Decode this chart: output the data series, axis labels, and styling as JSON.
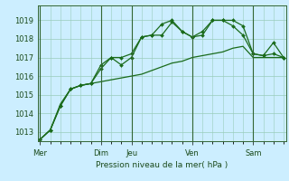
{
  "bg_color": "#cceeff",
  "grid_color_h": "#aaddcc",
  "grid_color_v_minor": "#bbddcc",
  "line_color": "#1a6b1a",
  "xlabel": "Pression niveau de la mer( hPa )",
  "ylim": [
    1012.5,
    1019.8
  ],
  "yticks": [
    1013,
    1014,
    1015,
    1016,
    1017,
    1018,
    1019
  ],
  "xticklabels": [
    "Mer",
    "Dim",
    "Jeu",
    "Ven",
    "Sam"
  ],
  "xtick_positions": [
    0,
    12,
    18,
    30,
    42
  ],
  "major_vlines": [
    0,
    12,
    18,
    30,
    42
  ],
  "n_points": 49,
  "series1_x": [
    0,
    2,
    4,
    6,
    8,
    10,
    12,
    14,
    16,
    18,
    20,
    22,
    24,
    26,
    28,
    30,
    32,
    34,
    36,
    38,
    40,
    42,
    44,
    46,
    48
  ],
  "series1": [
    1012.6,
    1013.1,
    1014.4,
    1015.3,
    1015.5,
    1015.6,
    1016.6,
    1017.0,
    1016.6,
    1017.0,
    1018.1,
    1018.2,
    1018.8,
    1019.0,
    1018.4,
    1018.1,
    1018.2,
    1019.0,
    1019.0,
    1018.7,
    1018.2,
    1017.2,
    1017.1,
    1017.2,
    1017.0
  ],
  "series2_x": [
    0,
    2,
    4,
    6,
    8,
    10,
    12,
    14,
    16,
    18,
    20,
    22,
    24,
    26,
    28,
    30,
    32,
    34,
    36,
    38,
    40,
    42,
    44,
    46,
    48
  ],
  "series2": [
    1012.6,
    1013.1,
    1014.4,
    1015.3,
    1015.5,
    1015.6,
    1016.4,
    1017.0,
    1017.0,
    1017.2,
    1018.1,
    1018.2,
    1018.2,
    1018.9,
    1018.4,
    1018.1,
    1018.4,
    1019.0,
    1019.0,
    1019.0,
    1018.7,
    1017.2,
    1017.1,
    1017.8,
    1017.0
  ],
  "series3_x": [
    0,
    2,
    4,
    6,
    8,
    10,
    12,
    14,
    16,
    18,
    20,
    22,
    24,
    26,
    28,
    30,
    32,
    34,
    36,
    38,
    40,
    42,
    44,
    46,
    48
  ],
  "series3": [
    1012.6,
    1013.1,
    1014.5,
    1015.3,
    1015.5,
    1015.6,
    1015.7,
    1015.8,
    1015.9,
    1016.0,
    1016.1,
    1016.3,
    1016.5,
    1016.7,
    1016.8,
    1017.0,
    1017.1,
    1017.2,
    1017.3,
    1017.5,
    1017.6,
    1017.0,
    1017.0,
    1017.0,
    1017.0
  ]
}
